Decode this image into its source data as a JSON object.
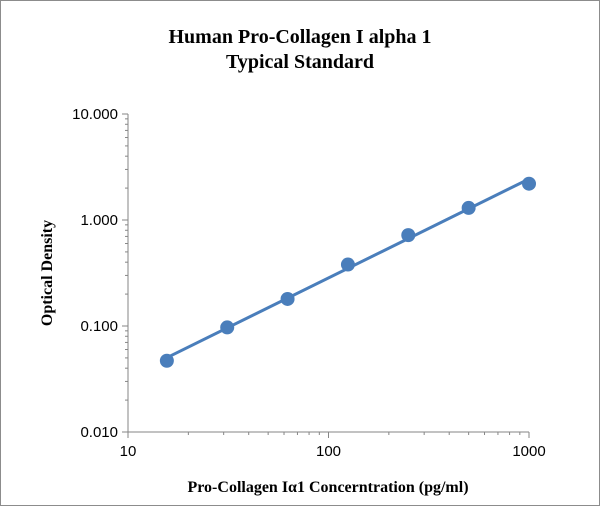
{
  "chart_data": {
    "type": "scatter",
    "title": "Human Pro-Collagen I alpha 1",
    "subtitle": "Typical Standard",
    "xlabel": "Pro-Collagen Iα1 Concerntration (pg/ml)",
    "ylabel": "Optical Density",
    "x_scale": "log",
    "y_scale": "log",
    "xlim": [
      10,
      1000
    ],
    "ylim": [
      0.01,
      10
    ],
    "x_ticks": [
      {
        "value": 10,
        "label": "10"
      },
      {
        "value": 100,
        "label": "100"
      },
      {
        "value": 1000,
        "label": "1000"
      }
    ],
    "y_ticks": [
      {
        "value": 0.01,
        "label": "0.010"
      },
      {
        "value": 0.1,
        "label": "0.100"
      },
      {
        "value": 1,
        "label": "1.000"
      },
      {
        "value": 10,
        "label": "10.000"
      }
    ],
    "grid": false,
    "legend": "none",
    "series": [
      {
        "x": [
          15.625,
          31.25,
          62.5,
          125,
          250,
          500,
          1000
        ],
        "y": [
          0.047,
          0.097,
          0.18,
          0.38,
          0.72,
          1.3,
          2.2
        ],
        "color": "#4a7ebb",
        "trendline": "power"
      }
    ]
  }
}
